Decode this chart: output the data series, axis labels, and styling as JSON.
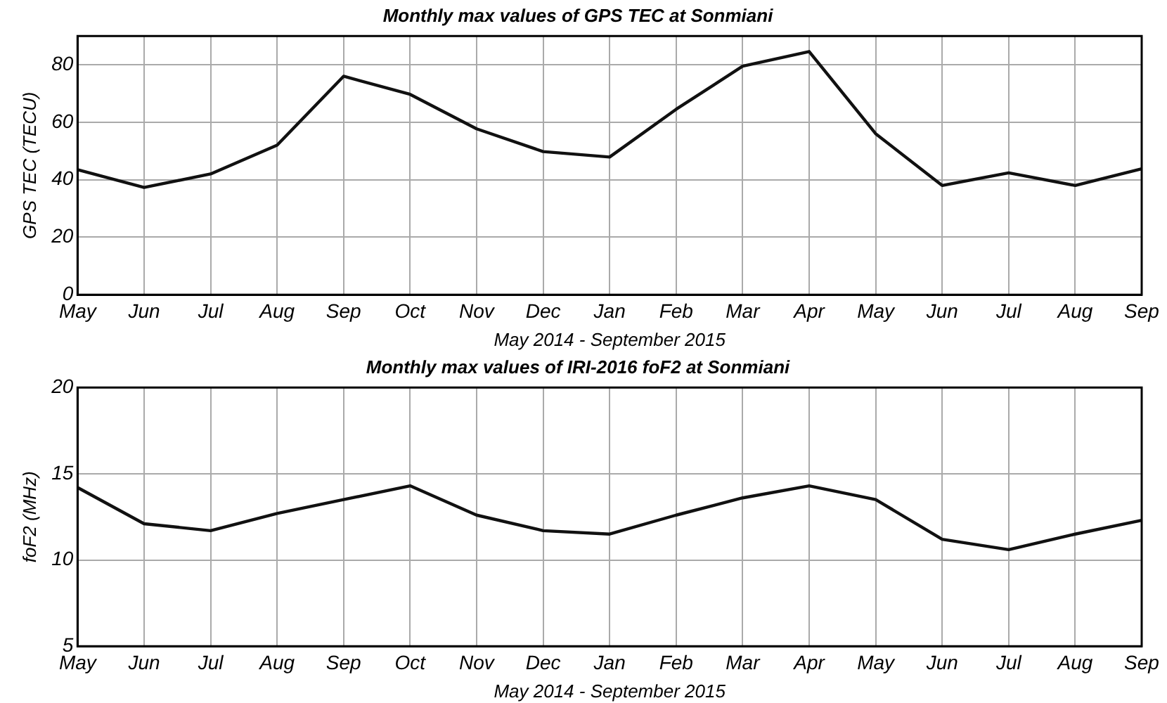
{
  "chart_data": [
    {
      "type": "line",
      "title": "Monthly max values of GPS TEC at Sonmiani",
      "xlabel": "May 2014 - September 2015",
      "ylabel": "GPS TEC (TECU)",
      "categories": [
        "May",
        "Jun",
        "Jul",
        "Aug",
        "Sep",
        "Oct",
        "Nov",
        "Dec",
        "Jan",
        "Feb",
        "Mar",
        "Apr",
        "May",
        "Jun",
        "Jul",
        "Aug",
        "Sep"
      ],
      "series": [
        {
          "color": "#111111",
          "values": [
            43.5,
            37.3,
            42,
            52,
            76,
            69.7,
            57.7,
            49.8,
            47.9,
            64.5,
            79.5,
            84.6,
            56,
            38,
            42.4,
            38,
            43.8
          ]
        }
      ],
      "ylim": [
        0,
        90
      ],
      "yticks": [
        0,
        20,
        40,
        60,
        80
      ],
      "grid": true,
      "line_style": "solid"
    },
    {
      "type": "line",
      "title": "Monthly max values of IRI-2016 foF2 at Sonmiani",
      "xlabel": "May 2014 - September 2015",
      "ylabel": "foF2 (MHz)",
      "categories": [
        "May",
        "Jun",
        "Jul",
        "Aug",
        "Sep",
        "Oct",
        "Nov",
        "Dec",
        "Jan",
        "Feb",
        "Mar",
        "Apr",
        "May",
        "Jun",
        "Jul",
        "Aug",
        "Sep"
      ],
      "series": [
        {
          "color": "#111111",
          "values": [
            14.2,
            12.1,
            11.7,
            12.7,
            13.5,
            14.3,
            12.6,
            11.7,
            11.5,
            12.6,
            13.6,
            14.3,
            13.5,
            11.2,
            10.6,
            11.5,
            12.3
          ]
        }
      ],
      "ylim": [
        5,
        20
      ],
      "yticks": [
        5,
        10,
        15,
        20
      ],
      "grid": true,
      "line_style": "solid"
    }
  ]
}
